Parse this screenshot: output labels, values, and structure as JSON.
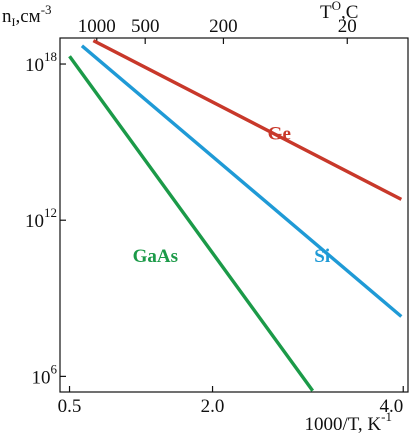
{
  "chart_data": {
    "type": "line",
    "log_y": true,
    "grid": false,
    "xlim": [
      0.4,
      4.05
    ],
    "ylim_exponent": [
      5.4,
      19.0
    ],
    "xlabel": {
      "main": "1000/T, K",
      "sup": "-1"
    },
    "ylabel": {
      "main": "n",
      "sub": "I",
      "rest": ",см",
      "sup": "-3"
    },
    "top_axis_label": {
      "main": "T",
      "sup": "O",
      "rest": ",C"
    },
    "x_ticks": [
      {
        "value": 0.5,
        "label": "0.5"
      },
      {
        "value": 2.0,
        "label": "2.0"
      },
      {
        "value": 4.0,
        "label": "4.0"
      }
    ],
    "y_ticks": [
      {
        "exponent": 18,
        "base": "10",
        "exp_label": "18"
      },
      {
        "exponent": 12,
        "base": "10",
        "exp_label": "12"
      },
      {
        "exponent": 6,
        "base": "10",
        "exp_label": "6"
      }
    ],
    "top_ticks": [
      {
        "temp_c": 1000,
        "label": "1000"
      },
      {
        "temp_c": 500,
        "label": "500"
      },
      {
        "temp_c": 200,
        "label": "200"
      },
      {
        "temp_c": 20,
        "label": "20"
      }
    ],
    "series": [
      {
        "name": "Ge",
        "color": "#c8382a",
        "x": [
          0.75,
          3.98
        ],
        "log10_y": [
          18.9,
          12.8
        ],
        "label_x": 2.7,
        "label_log10_y": 15.1
      },
      {
        "name": "Si",
        "color": "#1f9ad6",
        "x": [
          0.63,
          3.98
        ],
        "log10_y": [
          18.7,
          8.3
        ],
        "label_x": 3.15,
        "label_log10_y": 10.4
      },
      {
        "name": "GaAs",
        "color": "#1b9a48",
        "x": [
          0.5,
          3.05
        ],
        "log10_y": [
          18.3,
          5.45
        ],
        "label_x": 1.4,
        "label_log10_y": 10.4
      }
    ]
  }
}
